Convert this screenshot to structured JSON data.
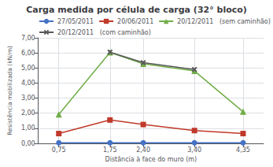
{
  "chart_data": {
    "type": "line",
    "title": "Carga medida por célula de carga (32° bloco)",
    "xlabel": "Distância à face do muro (m)",
    "ylabel": "Resistência mobilizada (kN/m)",
    "x": [
      0.75,
      1.75,
      2.4,
      3.4,
      4.35
    ],
    "series": [
      {
        "name": "27/05/2011",
        "color": "#4472c4",
        "marker": "circle",
        "values": [
          0.04,
          0.04,
          0.04,
          0.04,
          0.04
        ]
      },
      {
        "name": "20/06/2011",
        "color": "#c0392b",
        "marker": "square",
        "values": [
          0.65,
          1.55,
          1.25,
          0.85,
          0.65
        ]
      },
      {
        "name": "20/12/2011   (sem caminhão)",
        "color": "#70ad47",
        "marker": "triangle",
        "values": [
          1.92,
          6.03,
          5.28,
          4.8,
          2.1
        ]
      },
      {
        "name": "20/12/2011   (com caminhão)",
        "color": "#595959",
        "marker": "x",
        "values": [
          null,
          6.05,
          5.35,
          4.9,
          null
        ]
      }
    ],
    "xlim": [
      0.35,
      4.75
    ],
    "xticks": [
      {
        "value": 0.75,
        "label": "0,75"
      },
      {
        "value": 1.75,
        "label": "1,75"
      },
      {
        "value": 2.4,
        "label": "2,40"
      },
      {
        "value": 3.4,
        "label": "3,40"
      },
      {
        "value": 4.35,
        "label": "4,35"
      }
    ],
    "ylim": [
      0,
      7.0
    ],
    "yticks": [
      {
        "value": 0,
        "label": "0,00"
      },
      {
        "value": 1,
        "label": "1,00"
      },
      {
        "value": 2,
        "label": "2,00"
      },
      {
        "value": 3,
        "label": "3,00"
      },
      {
        "value": 4,
        "label": "4,00"
      },
      {
        "value": 5,
        "label": "5,00"
      },
      {
        "value": 6,
        "label": "6,00"
      },
      {
        "value": 7,
        "label": "7,00"
      }
    ],
    "grid": true,
    "legend": "upper left"
  }
}
